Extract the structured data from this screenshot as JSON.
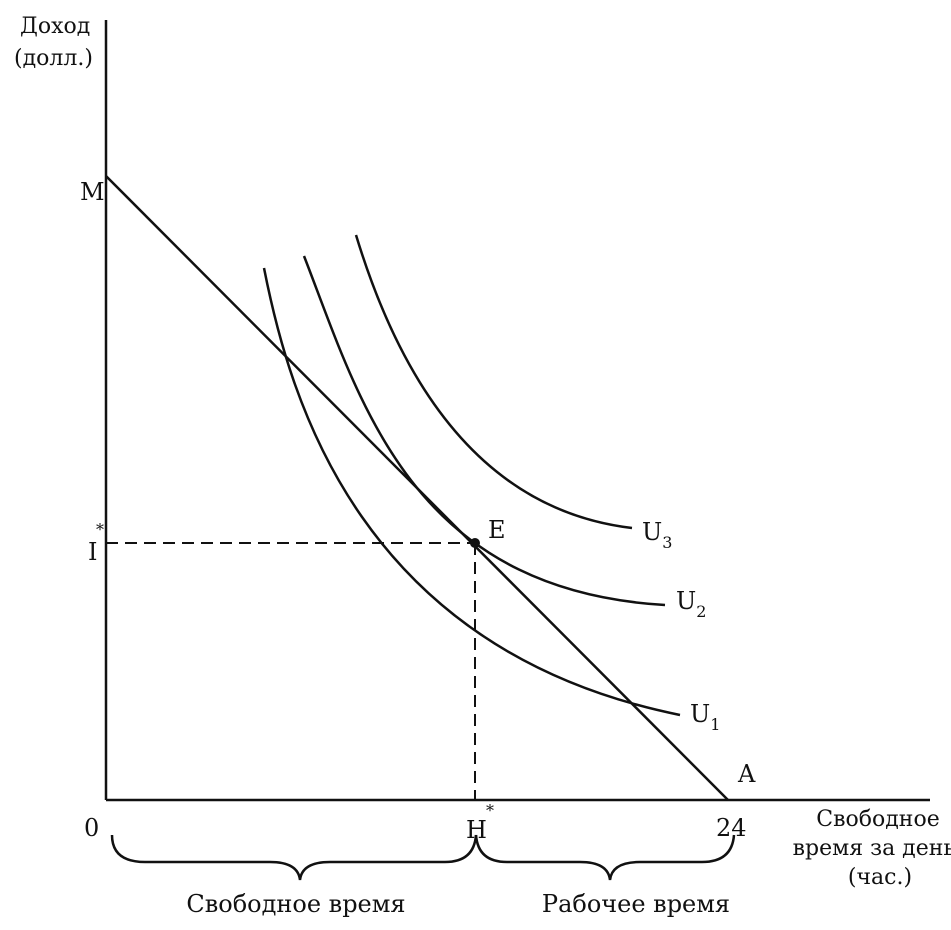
{
  "axes": {
    "y_label_line1": "Доход",
    "y_label_line2": "(долл.)",
    "x_label_line1": "Свободное",
    "x_label_line2": "время за день",
    "x_label_line3": "(час.)",
    "origin": "0",
    "x_end": "24"
  },
  "points": {
    "M": "M",
    "A": "A",
    "E": "E",
    "I_star": "I",
    "H_star": "H",
    "star": "*"
  },
  "curves": {
    "U1_base": "U",
    "U1_sub": "1",
    "U2_base": "U",
    "U2_sub": "2",
    "U3_base": "U",
    "U3_sub": "3"
  },
  "braces": {
    "leisure": "Свободное время",
    "work": "Рабочее время"
  }
}
